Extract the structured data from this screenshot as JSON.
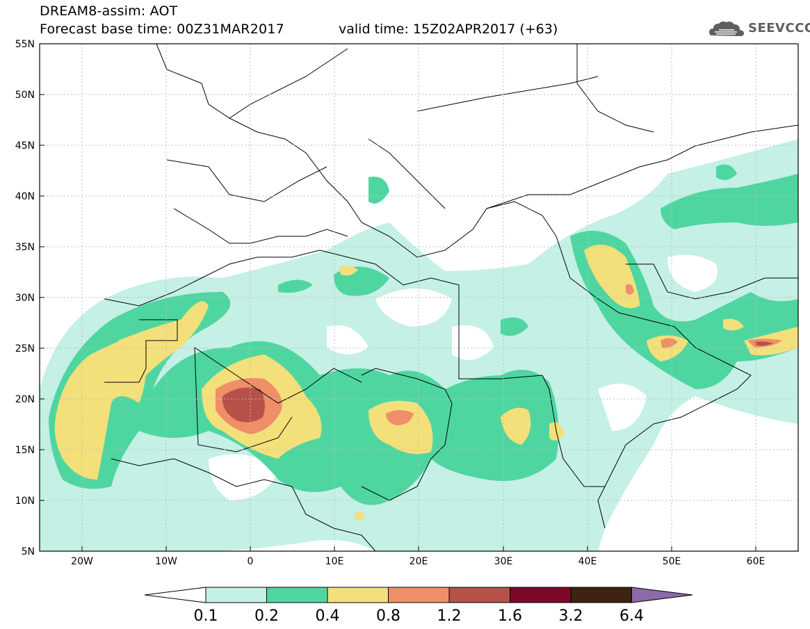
{
  "header": {
    "title": "DREAM8-assim: AOT",
    "base_time": "Forecast base time: 00Z31MAR2017",
    "valid_time": "valid time: 15Z02APR2017 (+63)",
    "logo_text": "SEEVCCC"
  },
  "map_data": {
    "projection": "equirectangular",
    "lon_range": [
      -25,
      65
    ],
    "lat_range": [
      5,
      55
    ],
    "lat_ticks": [
      "55N",
      "50N",
      "45N",
      "40N",
      "35N",
      "30N",
      "25N",
      "20N",
      "15N",
      "10N",
      "5N"
    ],
    "lon_ticks": [
      "20W",
      "10W",
      "0",
      "10E",
      "20E",
      "30E",
      "40E",
      "50E",
      "60E"
    ],
    "grid": true
  },
  "colorbar": {
    "labels": [
      "0.1",
      "0.2",
      "0.4",
      "0.8",
      "1.2",
      "1.6",
      "3.2",
      "6.4"
    ],
    "colors": [
      "#c4f0e6",
      "#4fd6a0",
      "#f3e07a",
      "#ef8f69",
      "#b6514a",
      "#7b0a2a",
      "#3d2310",
      "#8b6aa8"
    ]
  }
}
